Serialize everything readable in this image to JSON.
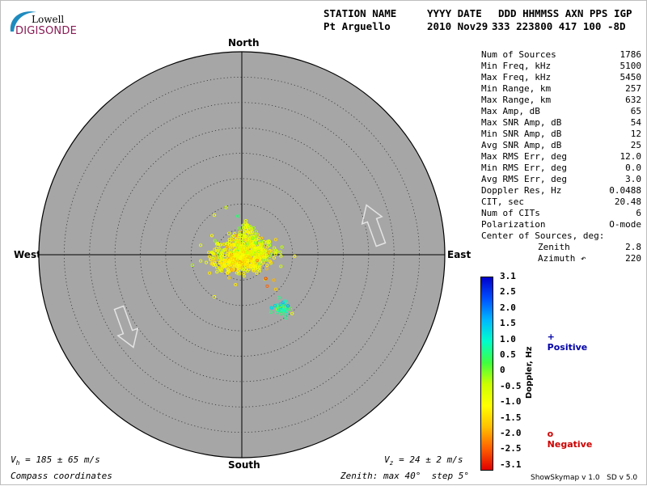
{
  "logo": {
    "line1": "Lowell",
    "line2": "DIGISONDE"
  },
  "header": {
    "labels": [
      "STATION NAME",
      "YYYY DATE",
      "DDD HHMMSS AXN PPS IGP"
    ],
    "values": [
      "Pt Arguello",
      "2010 Nov29",
      "333 223800 417 100 -8D"
    ]
  },
  "compass": {
    "north": "North",
    "south": "South",
    "east": "East",
    "west": "West"
  },
  "stats": [
    {
      "label": "Num of Sources",
      "value": "1786"
    },
    {
      "label": "Min Freq, kHz",
      "value": "5100"
    },
    {
      "label": "Max Freq, kHz",
      "value": "5450"
    },
    {
      "label": "Min Range, km",
      "value": "257"
    },
    {
      "label": "Max Range, km",
      "value": "632"
    },
    {
      "label": "Max Amp, dB",
      "value": "65"
    },
    {
      "label": "Max SNR Amp, dB",
      "value": "54"
    },
    {
      "label": "Min SNR Amp, dB",
      "value": "12"
    },
    {
      "label": "Avg SNR Amp, dB",
      "value": "25"
    },
    {
      "label": "Max RMS Err, deg",
      "value": "12.0"
    },
    {
      "label": "Min RMS Err, deg",
      "value": "0.0"
    },
    {
      "label": "Avg RMS Err, deg",
      "value": "3.0"
    },
    {
      "label": "Doppler Res, Hz",
      "value": "0.0488"
    },
    {
      "label": "CIT, sec",
      "value": "20.48"
    },
    {
      "label": "Num of CITs",
      "value": "6"
    },
    {
      "label": "Polarization",
      "value": "O-mode"
    },
    {
      "label": "Center of Sources, deg:",
      "value": ""
    },
    {
      "label": "Zenith",
      "value": "2.8",
      "indent": true
    },
    {
      "label": "Azimuth ↶",
      "value": "220",
      "indent": true
    }
  ],
  "colorbar": {
    "label": "Doppler, Hz",
    "min": -3.1,
    "max": 3.1,
    "ticks": [
      "3.1",
      "2.5",
      "2.0",
      "1.5",
      "1.0",
      "0.5",
      "0",
      "-0.5",
      "-1.0",
      "-1.5",
      "-2.0",
      "-2.5",
      "-3.1"
    ],
    "colors": [
      "#0000cc",
      "#0050ff",
      "#00b8ff",
      "#00ffcc",
      "#40ff40",
      "#ccff00",
      "#ffff00",
      "#ffc000",
      "#ff6000",
      "#e00000"
    ]
  },
  "legend": {
    "positive_symbol": "+",
    "positive": "Positive",
    "positive_color": "#0000aa",
    "negative_symbol": "o",
    "negative": "Negative",
    "negative_color": "#cc0000"
  },
  "footer": {
    "vh": "V",
    "vh_sub": "h",
    "vh_rest": " = 185 ± 65 m/s",
    "vz": "V",
    "vz_sub": "z",
    "vz_rest": " = 24 ± 2 m/s",
    "coords": "Compass coordinates",
    "zenith": "Zenith: max 40°  step 5°",
    "version": "ShowSkymap v 1.0   SD v 5.0"
  },
  "chart_data": {
    "type": "scatter",
    "projection": "polar skymap, compass coordinates",
    "zenith_max_deg": 40,
    "zenith_step_deg": 5,
    "background": "#a6a6a6",
    "clusters": [
      {
        "center_x_deg": 0.5,
        "center_y_deg": 0.3,
        "spread_x_deg": 5.5,
        "spread_y_deg": 2.8,
        "count": 520,
        "doppler_mean": -0.9,
        "doppler_spread": 0.45
      },
      {
        "center_x_deg": -1.5,
        "center_y_deg": -1.6,
        "spread_x_deg": 4.0,
        "spread_y_deg": 1.7,
        "count": 160,
        "doppler_mean": -1.2,
        "doppler_spread": 0.35
      },
      {
        "center_x_deg": 1.2,
        "center_y_deg": 4.0,
        "spread_x_deg": 1.8,
        "spread_y_deg": 2.2,
        "count": 70,
        "doppler_mean": -0.6,
        "doppler_spread": 0.4
      },
      {
        "center_x_deg": 7.8,
        "center_y_deg": -10.6,
        "spread_x_deg": 1.6,
        "spread_y_deg": 1.4,
        "count": 38,
        "doppler_mean": 0.9,
        "doppler_spread": 0.6
      }
    ],
    "outliers": [
      {
        "x_deg": -3.1,
        "y_deg": 9.3,
        "doppler": -0.4
      },
      {
        "x_deg": -0.8,
        "y_deg": 7.6,
        "doppler": 0.6
      },
      {
        "x_deg": -5.4,
        "y_deg": 7.8,
        "doppler": -0.8
      },
      {
        "x_deg": -5.4,
        "y_deg": -8.3,
        "doppler": -0.9
      },
      {
        "x_deg": 4.6,
        "y_deg": -4.8,
        "doppler": -0.6
      },
      {
        "x_deg": 4.7,
        "y_deg": -4.7,
        "doppler": -2.8
      },
      {
        "x_deg": 5.0,
        "y_deg": -6.2,
        "doppler": -2.4
      },
      {
        "x_deg": 6.3,
        "y_deg": -5.0,
        "doppler": -1.8
      },
      {
        "x_deg": 6.7,
        "y_deg": -6.8,
        "doppler": -1.6
      }
    ],
    "velocity_arrows": [
      {
        "azimuth_deg": 160,
        "role": "horizontal velocity"
      },
      {
        "azimuth_deg": 340,
        "role": "horizontal velocity reversed"
      }
    ]
  }
}
